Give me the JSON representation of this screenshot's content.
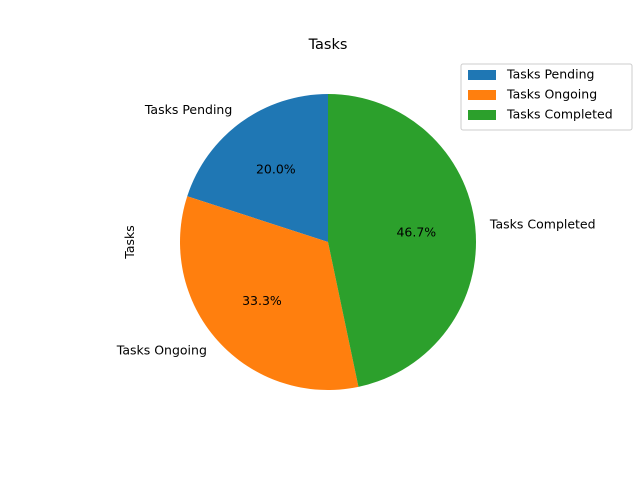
{
  "chart_data": {
    "type": "pie",
    "title": "Tasks",
    "ylabel": "Tasks",
    "categories": [
      "Tasks Pending",
      "Tasks Ongoing",
      "Tasks Completed"
    ],
    "values": [
      20.0,
      33.3,
      46.7
    ],
    "value_labels": [
      "20.0%",
      "33.3%",
      "46.7%"
    ],
    "colors": [
      "#1f77b4",
      "#ff7f0e",
      "#2ca02c"
    ],
    "start_angle_deg": 90,
    "direction": "counterclockwise",
    "legend": {
      "placement": "top-right",
      "entries": [
        "Tasks Pending",
        "Tasks Ongoing",
        "Tasks Completed"
      ]
    }
  }
}
